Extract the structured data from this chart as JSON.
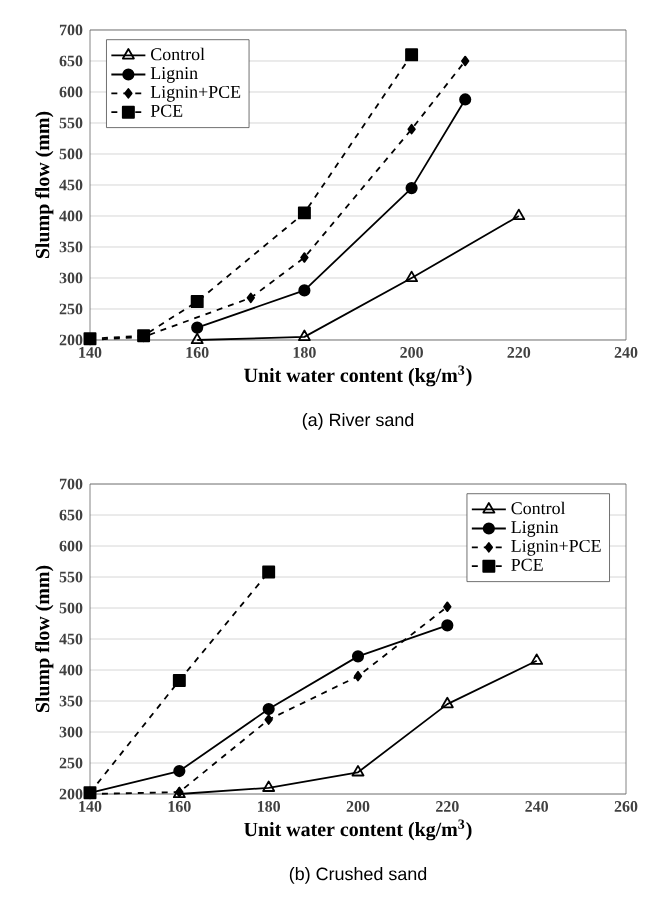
{
  "chart_data": [
    {
      "type": "line",
      "xlabel": "Unit water content (kg/m$^{3}$)",
      "ylabel": "Slump flow (mm)",
      "annotations": [
        "(a)  River sand"
      ],
      "xlim": [
        140,
        240
      ],
      "xticks": [
        140,
        160,
        180,
        200,
        220,
        240
      ],
      "ylim": [
        200,
        700
      ],
      "yticks": [
        200,
        250,
        300,
        350,
        400,
        450,
        500,
        550,
        600,
        650,
        700
      ],
      "grid": "y",
      "legend": "top left",
      "series": [
        {
          "name": "Control",
          "color": "#000000",
          "marker": "triangle",
          "line_style": "solid",
          "x": [
            160,
            180,
            200,
            220
          ],
          "values": [
            200,
            205,
            300,
            400
          ]
        },
        {
          "name": "Lignin",
          "color": "#000000",
          "marker": "circle",
          "line_style": "solid",
          "x": [
            160,
            180,
            200,
            210
          ],
          "values": [
            220,
            280,
            445,
            588
          ]
        },
        {
          "name": "Lignin+PCE",
          "color": "#000000",
          "marker": "diamond",
          "line_style": "dashed",
          "x": [
            140,
            150,
            170,
            180,
            200,
            210
          ],
          "values": [
            200,
            205,
            268,
            333,
            540,
            650
          ]
        },
        {
          "name": "PCE",
          "color": "#000000",
          "marker": "square",
          "line_style": "dashed",
          "x": [
            140,
            150,
            160,
            180,
            200
          ],
          "values": [
            202,
            207,
            262,
            405,
            660
          ]
        }
      ]
    },
    {
      "type": "line",
      "xlabel": "Unit water content (kg/m$^{3}$)",
      "ylabel": "Slump flow (mm)",
      "annotations": [
        "(b)  Crushed sand"
      ],
      "xlim": [
        140,
        260
      ],
      "xticks": [
        140,
        160,
        180,
        200,
        220,
        240,
        260
      ],
      "ylim": [
        200,
        700
      ],
      "yticks": [
        200,
        250,
        300,
        350,
        400,
        450,
        500,
        550,
        600,
        650,
        700
      ],
      "grid": "y",
      "legend": "top right",
      "series": [
        {
          "name": "Control",
          "color": "#000000",
          "marker": "triangle",
          "line_style": "solid",
          "x": [
            160,
            180,
            200,
            220,
            240
          ],
          "values": [
            200,
            210,
            235,
            345,
            415
          ]
        },
        {
          "name": "Lignin",
          "color": "#000000",
          "marker": "circle",
          "line_style": "solid",
          "x": [
            140,
            160,
            180,
            200,
            220
          ],
          "values": [
            202,
            237,
            337,
            422,
            472
          ]
        },
        {
          "name": "Lignin+PCE",
          "color": "#000000",
          "marker": "diamond",
          "line_style": "dashed",
          "x": [
            140,
            160,
            180,
            200,
            220
          ],
          "values": [
            200,
            203,
            320,
            390,
            502
          ]
        },
        {
          "name": "PCE",
          "color": "#000000",
          "marker": "square",
          "line_style": "dashed",
          "x": [
            140,
            160,
            180
          ],
          "values": [
            202,
            383,
            558
          ]
        }
      ]
    }
  ]
}
